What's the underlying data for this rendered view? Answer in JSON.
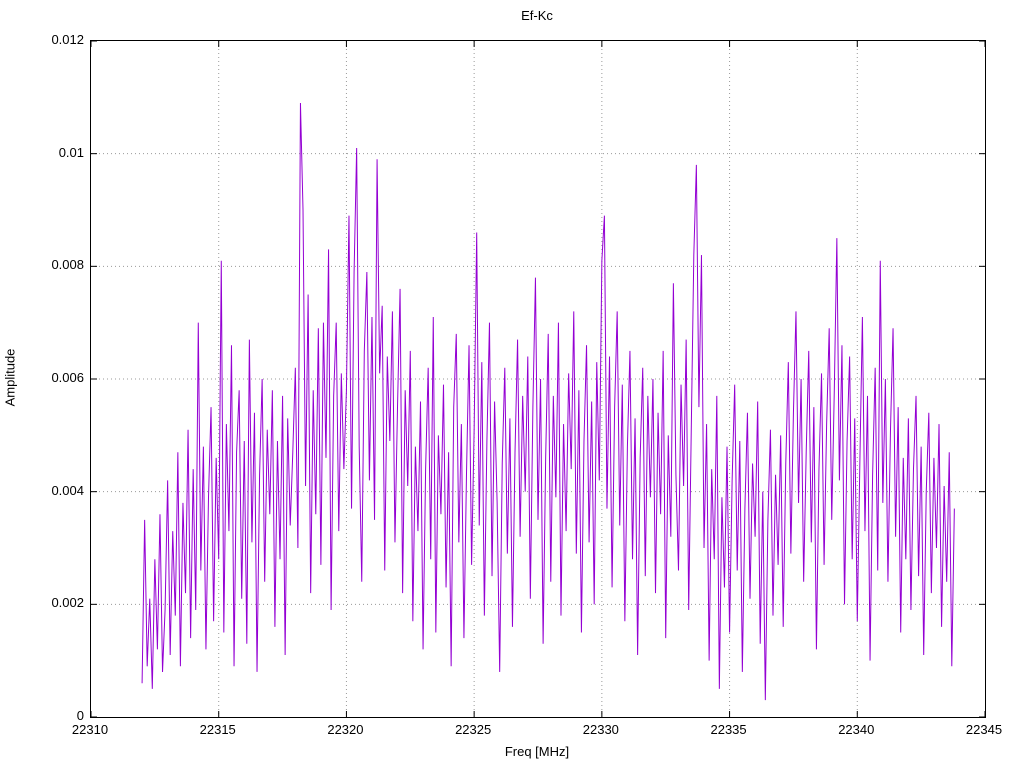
{
  "chart_data": {
    "type": "line",
    "title": "Ef-Kc",
    "xlabel": "Freq [MHz]",
    "ylabel": "Amplitude",
    "xlim": [
      22310,
      22345
    ],
    "ylim": [
      0,
      0.012
    ],
    "x_ticks": [
      22310,
      22315,
      22320,
      22325,
      22330,
      22335,
      22340,
      22345
    ],
    "x_tick_labels": [
      "22310",
      "22315",
      "22320",
      "22325",
      "22330",
      "22335",
      "22340",
      "22345"
    ],
    "y_ticks": [
      0,
      0.002,
      0.004,
      0.006,
      0.008,
      0.01,
      0.012
    ],
    "y_tick_labels": [
      "0",
      "0.002",
      "0.004",
      "0.006",
      "0.008",
      "0.01",
      "0.012"
    ],
    "grid": "dotted",
    "legend": "none",
    "line_color": "#9400d3",
    "background_color": "#ffffff",
    "series": [
      {
        "name": "Ef-Kc",
        "x_start": 22312.0,
        "x_step": 0.1,
        "values": [
          0.0006,
          0.0035,
          0.0009,
          0.0021,
          0.0005,
          0.0028,
          0.0012,
          0.0036,
          0.0008,
          0.0019,
          0.0042,
          0.0011,
          0.0033,
          0.0018,
          0.0047,
          0.0009,
          0.0038,
          0.0022,
          0.0051,
          0.0014,
          0.0044,
          0.0019,
          0.007,
          0.0026,
          0.0048,
          0.0012,
          0.0039,
          0.0055,
          0.0017,
          0.0046,
          0.0028,
          0.0081,
          0.0015,
          0.0052,
          0.0033,
          0.0066,
          0.0009,
          0.0047,
          0.0058,
          0.0021,
          0.0049,
          0.0013,
          0.0067,
          0.0031,
          0.0054,
          0.0008,
          0.0043,
          0.006,
          0.0024,
          0.0051,
          0.0036,
          0.0058,
          0.0016,
          0.0049,
          0.0028,
          0.0057,
          0.0011,
          0.0053,
          0.0034,
          0.0047,
          0.0062,
          0.003,
          0.0109,
          0.009,
          0.0041,
          0.0075,
          0.0022,
          0.0058,
          0.0036,
          0.0069,
          0.0027,
          0.007,
          0.0046,
          0.0083,
          0.0019,
          0.0057,
          0.007,
          0.0033,
          0.0061,
          0.0044,
          0.0058,
          0.0089,
          0.0037,
          0.0079,
          0.0101,
          0.0048,
          0.0024,
          0.0065,
          0.0079,
          0.0042,
          0.0071,
          0.0035,
          0.0099,
          0.0061,
          0.0073,
          0.0026,
          0.0064,
          0.0049,
          0.0072,
          0.0031,
          0.0055,
          0.0076,
          0.0022,
          0.0058,
          0.0041,
          0.0065,
          0.0017,
          0.0048,
          0.0033,
          0.0056,
          0.0012,
          0.0044,
          0.0062,
          0.0028,
          0.0071,
          0.0015,
          0.005,
          0.0036,
          0.0059,
          0.0023,
          0.0047,
          0.0009,
          0.0055,
          0.0068,
          0.0031,
          0.0052,
          0.0014,
          0.0043,
          0.0066,
          0.0027,
          0.0051,
          0.0086,
          0.0034,
          0.0063,
          0.0018,
          0.0049,
          0.007,
          0.0025,
          0.0056,
          0.0038,
          0.0008,
          0.0045,
          0.0062,
          0.0029,
          0.0053,
          0.0016,
          0.0047,
          0.0067,
          0.0032,
          0.0057,
          0.004,
          0.0064,
          0.0021,
          0.0055,
          0.0078,
          0.0035,
          0.006,
          0.0013,
          0.0046,
          0.0068,
          0.0024,
          0.0057,
          0.0039,
          0.007,
          0.0018,
          0.0052,
          0.0033,
          0.0061,
          0.0044,
          0.0072,
          0.0029,
          0.0058,
          0.0015,
          0.0049,
          0.0066,
          0.0031,
          0.0056,
          0.002,
          0.0063,
          0.0042,
          0.0081,
          0.0089,
          0.0037,
          0.0064,
          0.0023,
          0.0055,
          0.0072,
          0.0034,
          0.0059,
          0.0017,
          0.0048,
          0.0065,
          0.0028,
          0.0053,
          0.0011,
          0.0046,
          0.0062,
          0.0025,
          0.0057,
          0.0039,
          0.006,
          0.0022,
          0.0054,
          0.0036,
          0.0065,
          0.0014,
          0.005,
          0.0032,
          0.0077,
          0.0043,
          0.0026,
          0.0059,
          0.0041,
          0.0067,
          0.0019,
          0.0051,
          0.0082,
          0.0098,
          0.0055,
          0.0082,
          0.003,
          0.0052,
          0.001,
          0.0044,
          0.0028,
          0.0057,
          0.0005,
          0.0039,
          0.0023,
          0.0048,
          0.0015,
          0.0042,
          0.0059,
          0.0026,
          0.0049,
          0.0008,
          0.0037,
          0.0054,
          0.0021,
          0.0045,
          0.0032,
          0.0056,
          0.0013,
          0.004,
          0.0003,
          0.0035,
          0.0051,
          0.0018,
          0.0043,
          0.0027,
          0.005,
          0.0016,
          0.0045,
          0.0063,
          0.0029,
          0.0054,
          0.0072,
          0.0038,
          0.006,
          0.0024,
          0.0047,
          0.0065,
          0.0031,
          0.0055,
          0.0012,
          0.0044,
          0.0061,
          0.0027,
          0.0052,
          0.0069,
          0.0035,
          0.0058,
          0.0085,
          0.0042,
          0.0066,
          0.002,
          0.0049,
          0.0064,
          0.0028,
          0.0053,
          0.0017,
          0.0045,
          0.0071,
          0.0033,
          0.0057,
          0.001,
          0.0043,
          0.0062,
          0.0026,
          0.0081,
          0.0038,
          0.006,
          0.0024,
          0.0051,
          0.0069,
          0.0032,
          0.0055,
          0.0015,
          0.0046,
          0.0028,
          0.0053,
          0.0019,
          0.0044,
          0.0057,
          0.0025,
          0.0048,
          0.0011,
          0.004,
          0.0054,
          0.0022,
          0.0046,
          0.003,
          0.0052,
          0.0016,
          0.0041,
          0.0024,
          0.0047,
          0.0009,
          0.0037
        ]
      }
    ]
  }
}
